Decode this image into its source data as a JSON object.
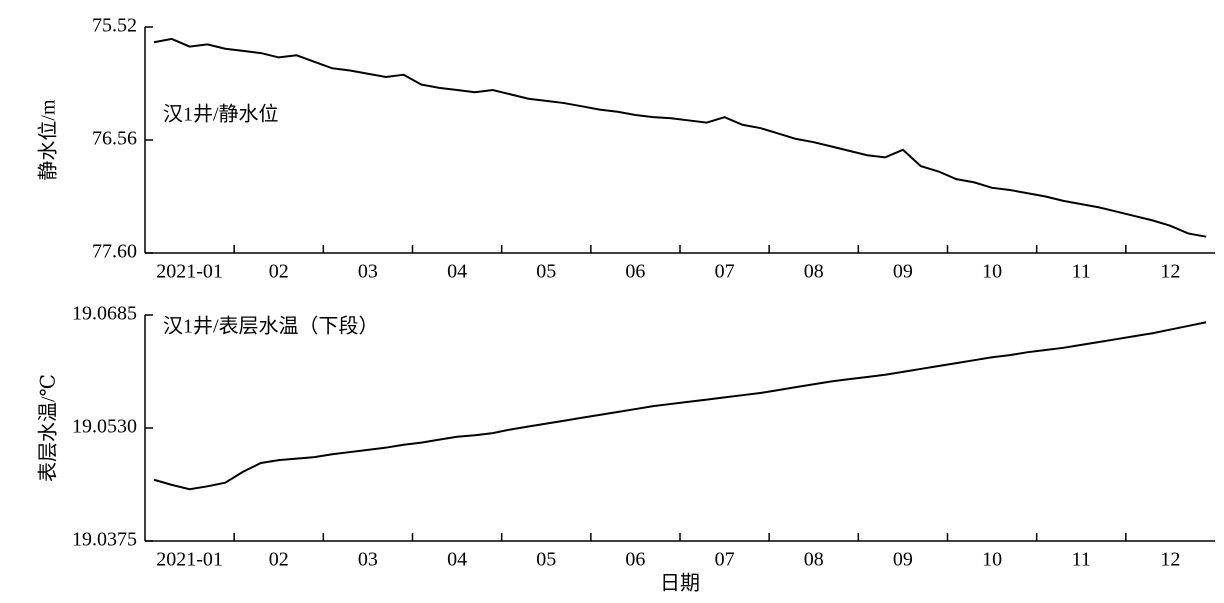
{
  "chart_data": [
    {
      "type": "line",
      "annotation": "汉1井/静水位",
      "y_label": "静水位/m",
      "color": "#000000",
      "ylim": [
        77.6,
        75.52
      ],
      "yticks": [
        75.52,
        76.56,
        {
          "value": 77.6,
          "label": "77.60"
        }
      ],
      "categories": [
        null,
        null,
        "2021-01",
        null,
        null,
        null,
        null,
        "02",
        null,
        null,
        null,
        null,
        "03",
        null,
        null,
        null,
        null,
        "04",
        null,
        null,
        null,
        null,
        "05",
        null,
        null,
        null,
        null,
        "06",
        null,
        null,
        null,
        null,
        "07",
        null,
        null,
        null,
        null,
        "08",
        null,
        null,
        null,
        null,
        "09",
        null,
        null,
        null,
        null,
        "10",
        null,
        null,
        null,
        null,
        "11",
        null,
        null,
        null,
        null,
        "12",
        null,
        null
      ],
      "values": [
        75.66,
        75.63,
        75.7,
        75.68,
        75.72,
        75.74,
        75.76,
        75.8,
        75.78,
        75.84,
        75.9,
        75.92,
        75.95,
        75.98,
        75.96,
        76.05,
        76.08,
        76.1,
        76.12,
        76.1,
        76.14,
        76.18,
        76.2,
        76.22,
        76.25,
        76.28,
        76.3,
        76.33,
        76.35,
        76.36,
        76.38,
        76.4,
        76.35,
        76.42,
        76.45,
        76.5,
        76.55,
        76.58,
        76.62,
        76.66,
        76.7,
        76.72,
        76.65,
        76.8,
        76.85,
        76.92,
        76.95,
        77.0,
        77.02,
        77.05,
        77.08,
        77.12,
        77.15,
        77.18,
        77.22,
        77.26,
        77.3,
        77.35,
        77.42,
        77.45
      ]
    },
    {
      "type": "line",
      "annotation": "汉1井/表层水温（下段）",
      "y_label": "表层水温/℃",
      "x_label": "日期",
      "color": "#000000",
      "ylim": [
        19.0375,
        19.0685
      ],
      "yticks": [
        19.0375,
        {
          "value": 19.053,
          "label": "19.0530"
        },
        19.0685
      ],
      "categories": [
        null,
        null,
        "2021-01",
        null,
        null,
        null,
        null,
        "02",
        null,
        null,
        null,
        null,
        "03",
        null,
        null,
        null,
        null,
        "04",
        null,
        null,
        null,
        null,
        "05",
        null,
        null,
        null,
        null,
        "06",
        null,
        null,
        null,
        null,
        "07",
        null,
        null,
        null,
        null,
        "08",
        null,
        null,
        null,
        null,
        "09",
        null,
        null,
        null,
        null,
        "10",
        null,
        null,
        null,
        null,
        "11",
        null,
        null,
        null,
        null,
        "12",
        null,
        null
      ],
      "values": [
        19.0459,
        19.0452,
        19.0446,
        19.045,
        19.0455,
        19.047,
        19.0482,
        19.0486,
        19.0488,
        19.049,
        19.0494,
        19.0497,
        19.05,
        19.0503,
        19.0507,
        19.051,
        19.0514,
        19.0518,
        19.052,
        19.0523,
        19.0528,
        19.0532,
        19.0536,
        19.054,
        19.0544,
        19.0548,
        19.0552,
        19.0556,
        19.056,
        19.0563,
        19.0566,
        19.0569,
        19.0572,
        19.0575,
        19.0578,
        19.0582,
        19.0586,
        19.059,
        19.0594,
        19.0597,
        19.06,
        19.0603,
        19.0607,
        19.0611,
        19.0615,
        19.0619,
        19.0623,
        19.0627,
        19.063,
        19.0634,
        19.0637,
        19.064,
        19.0644,
        19.0648,
        19.0652,
        19.0656,
        19.066,
        19.0665,
        19.067,
        19.0675
      ]
    }
  ]
}
